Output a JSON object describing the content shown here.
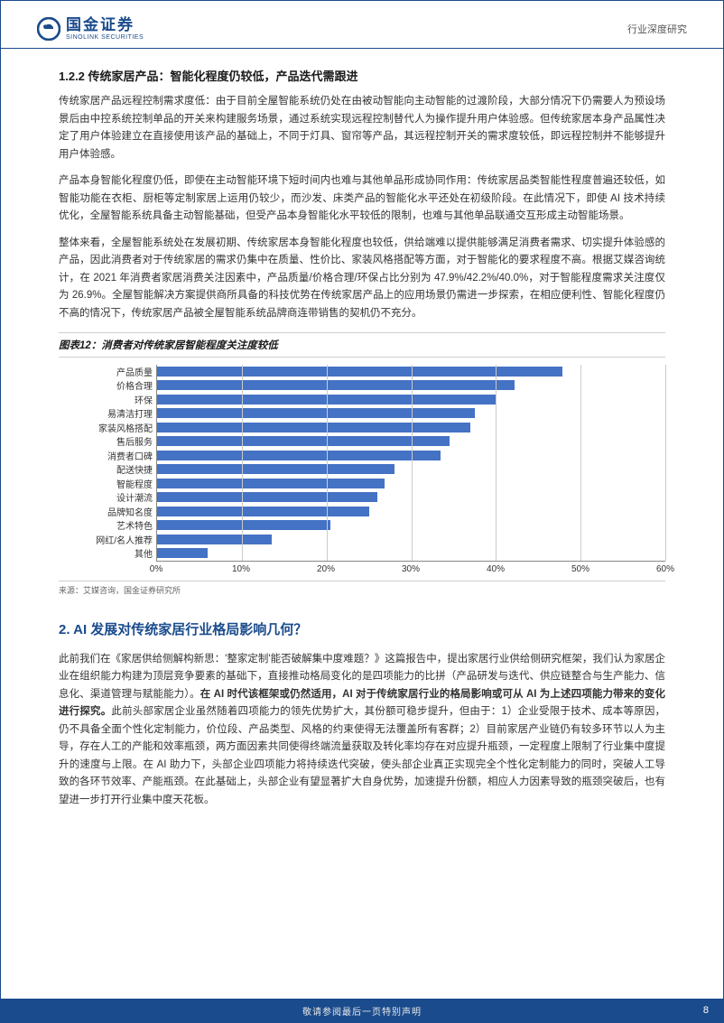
{
  "header": {
    "logo_cn": "国金证券",
    "logo_en": "SINOLINK SECURITIES",
    "right": "行业深度研究"
  },
  "section1": {
    "title": "1.2.2 传统家居产品：智能化程度仍较低，产品迭代需跟进",
    "p1": "传统家居产品远程控制需求度低：由于目前全屋智能系统仍处在由被动智能向主动智能的过渡阶段，大部分情况下仍需要人为预设场景后由中控系统控制单品的开关来构建服务场景，通过系统实现远程控制替代人为操作提升用户体验感。但传统家居本身产品属性决定了用户体验建立在直接使用该产品的基础上，不同于灯具、窗帘等产品，其远程控制开关的需求度较低，即远程控制并不能够提升用户体验感。",
    "p2": "产品本身智能化程度仍低，即使在主动智能环境下短时间内也难与其他单品形成协同作用：传统家居品类智能性程度普遍还较低，如智能功能在衣柜、厨柜等定制家居上运用仍较少，而沙发、床类产品的智能化水平还处在初级阶段。在此情况下，即使 AI 技术持续优化，全屋智能系统具备主动智能基础，但受产品本身智能化水平较低的限制，也难与其他单品联通交互形成主动智能场景。",
    "p3": "整体来看，全屋智能系统处在发展初期、传统家居本身智能化程度也较低，供给端难以提供能够满足消费者需求、切实提升体验感的产品，因此消费者对于传统家居的需求仍集中在质量、性价比、家装风格搭配等方面，对于智能化的要求程度不高。根据艾媒咨询统计，在 2021 年消费者家居消费关注因素中，产品质量/价格合理/环保占比分别为 47.9%/42.2%/40.0%，对于智能程度需求关注度仅为 26.9%。全屋智能解决方案提供商所具备的科技优势在传统家居产品上的应用场景仍需进一步探索，在相应便利性、智能化程度仍不高的情况下，传统家居产品被全屋智能系统品牌商连带销售的契机仍不充分。"
  },
  "chart12": {
    "title": "图表12：消费者对传统家居智能程度关注度较低",
    "type": "bar-horizontal",
    "xlim": [
      0,
      60
    ],
    "xtick_step": 10,
    "xtick_labels": [
      "0%",
      "10%",
      "20%",
      "30%",
      "40%",
      "50%",
      "60%"
    ],
    "bar_color": "#4472c4",
    "grid_color": "#cccccc",
    "axis_color": "#888888",
    "label_fontsize": 10,
    "categories": [
      "产品质量",
      "价格合理",
      "环保",
      "易清洁打理",
      "家装风格搭配",
      "售后服务",
      "消费者口碑",
      "配送快捷",
      "智能程度",
      "设计潮流",
      "品牌知名度",
      "艺术特色",
      "网红/名人推荐",
      "其他"
    ],
    "values": [
      47.9,
      42.2,
      40.0,
      37.5,
      37.0,
      34.5,
      33.5,
      28.0,
      26.9,
      26.0,
      25.0,
      20.5,
      13.5,
      6.0
    ],
    "source": "来源：艾媒咨询，国金证券研究所"
  },
  "section2": {
    "h2": "2. AI 发展对传统家居行业格局影响几何？",
    "p1a": "此前我们在《家居供给侧解构新思：'整家定制'能否破解集中度难题？》这篇报告中，提出家居行业供给侧研究框架，我们认为家居企业在组织能力构建为顶层竞争要素的基础下，直接推动格局变化的是四项能力的比拼（产品研发与迭代、供应链整合与生产能力、信息化、渠道管理与赋能能力）。",
    "p1b": "在 AI 时代该框架或仍然适用，AI 对于传统家居行业的格局影响或可从 AI 为上述四项能力带来的变化进行探究。",
    "p1c": "此前头部家居企业虽然随着四项能力的领先优势扩大，其份额可稳步提升，但由于：1）企业受限于技术、成本等原因，仍不具备全面个性化定制能力，价位段、产品类型、风格的约束使得无法覆盖所有客群；2）目前家居产业链仍有较多环节以人为主导，存在人工的产能和效率瓶颈，两方面因素共同使得终端流量获取及转化率均存在对应提升瓶颈，一定程度上限制了行业集中度提升的速度与上限。在 AI 助力下，头部企业四项能力将持续迭代突破，使头部企业真正实现完全个性化定制能力的同时，突破人工导致的各环节效率、产能瓶颈。在此基础上，头部企业有望显著扩大自身优势，加速提升份额，相应人力因素导致的瓶颈突破后，也有望进一步打开行业集中度天花板。"
  },
  "footer": {
    "text": "敬请参阅最后一页特别声明",
    "page": "8"
  }
}
